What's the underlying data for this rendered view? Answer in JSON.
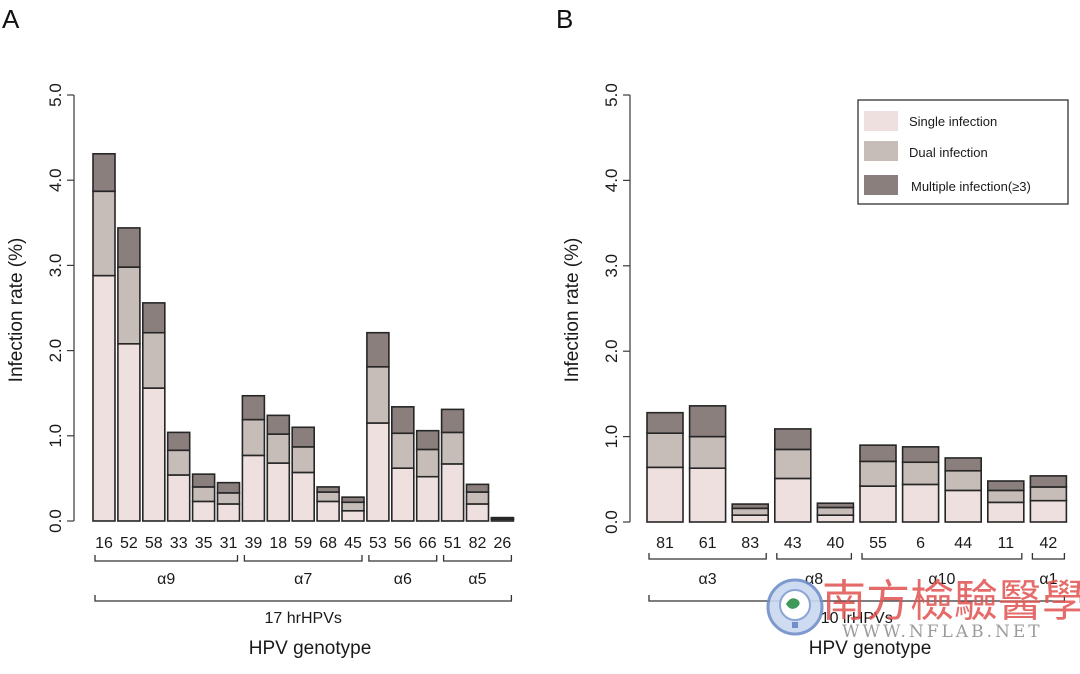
{
  "figure": {
    "panel_labels": [
      "A",
      "B"
    ],
    "colors": {
      "single": "#ede0df",
      "dual": "#c6bcb8",
      "multiple": "#8a7f7d",
      "outline": "#262626"
    },
    "watermark": {
      "text_cn": "南方檢驗醫學",
      "url": "WWW.NFLAB.NET"
    }
  },
  "chart_data": [
    {
      "type": "bar",
      "stacked": true,
      "panel": "A",
      "title": "",
      "xlabel": "HPV genotype",
      "ylabel": "Infection rate (%)",
      "ylim": [
        0,
        5
      ],
      "yticks": [
        "0.0",
        "1.0",
        "2.0",
        "3.0",
        "4.0",
        "5.0"
      ],
      "grid": false,
      "categories": [
        "16",
        "52",
        "58",
        "33",
        "35",
        "31",
        "39",
        "18",
        "59",
        "68",
        "45",
        "53",
        "56",
        "66",
        "51",
        "82",
        "26"
      ],
      "series": [
        {
          "name": "Single infection",
          "values": [
            2.88,
            2.08,
            1.56,
            0.54,
            0.23,
            0.2,
            0.77,
            0.68,
            0.57,
            0.23,
            0.12,
            1.15,
            0.62,
            0.52,
            0.67,
            0.2,
            0.02
          ]
        },
        {
          "name": "Dual infection",
          "values": [
            0.99,
            0.9,
            0.65,
            0.29,
            0.17,
            0.13,
            0.42,
            0.34,
            0.3,
            0.11,
            0.1,
            0.66,
            0.41,
            0.32,
            0.37,
            0.14,
            0.01
          ]
        },
        {
          "name": "Multiple infection(≥3)",
          "values": [
            0.44,
            0.46,
            0.35,
            0.21,
            0.15,
            0.12,
            0.28,
            0.22,
            0.23,
            0.06,
            0.06,
            0.4,
            0.31,
            0.22,
            0.27,
            0.09,
            0.01
          ]
        }
      ],
      "groups": [
        {
          "label": "α9",
          "from": 0,
          "to": 5
        },
        {
          "label": "α7",
          "from": 6,
          "to": 10
        },
        {
          "label": "α6",
          "from": 11,
          "to": 13
        },
        {
          "label": "α5",
          "from": 14,
          "to": 16
        }
      ],
      "supergroup": {
        "label": "17 hrHPVs",
        "from": 0,
        "to": 16
      }
    },
    {
      "type": "bar",
      "stacked": true,
      "panel": "B",
      "title": "",
      "xlabel": "HPV genotype",
      "ylabel": "Infection rate (%)",
      "ylim": [
        0,
        5
      ],
      "yticks": [
        "0.0",
        "1.0",
        "2.0",
        "3.0",
        "4.0",
        "5.0"
      ],
      "grid": false,
      "legend": {
        "placement": "top-right",
        "entries": [
          "Single infection",
          "Dual infection",
          "Multiple infection(≥3)"
        ]
      },
      "categories": [
        "81",
        "61",
        "83",
        "43",
        "40",
        "55",
        "6",
        "44",
        "11",
        "42"
      ],
      "series": [
        {
          "name": "Single infection",
          "values": [
            0.64,
            0.63,
            0.08,
            0.51,
            0.08,
            0.42,
            0.44,
            0.37,
            0.23,
            0.25
          ]
        },
        {
          "name": "Dual infection",
          "values": [
            0.4,
            0.37,
            0.08,
            0.34,
            0.09,
            0.29,
            0.26,
            0.23,
            0.14,
            0.16
          ]
        },
        {
          "name": "Multiple infection(≥3)",
          "values": [
            0.24,
            0.36,
            0.05,
            0.24,
            0.05,
            0.19,
            0.18,
            0.15,
            0.11,
            0.13
          ]
        }
      ],
      "groups": [
        {
          "label": "α3",
          "from": 0,
          "to": 2
        },
        {
          "label": "α8",
          "from": 3,
          "to": 4
        },
        {
          "label": "α10",
          "from": 5,
          "to": 8
        },
        {
          "label": "α1",
          "from": 9,
          "to": 9
        }
      ],
      "supergroup": {
        "label": "10 lrHPVs",
        "from": 0,
        "to": 9
      }
    }
  ]
}
